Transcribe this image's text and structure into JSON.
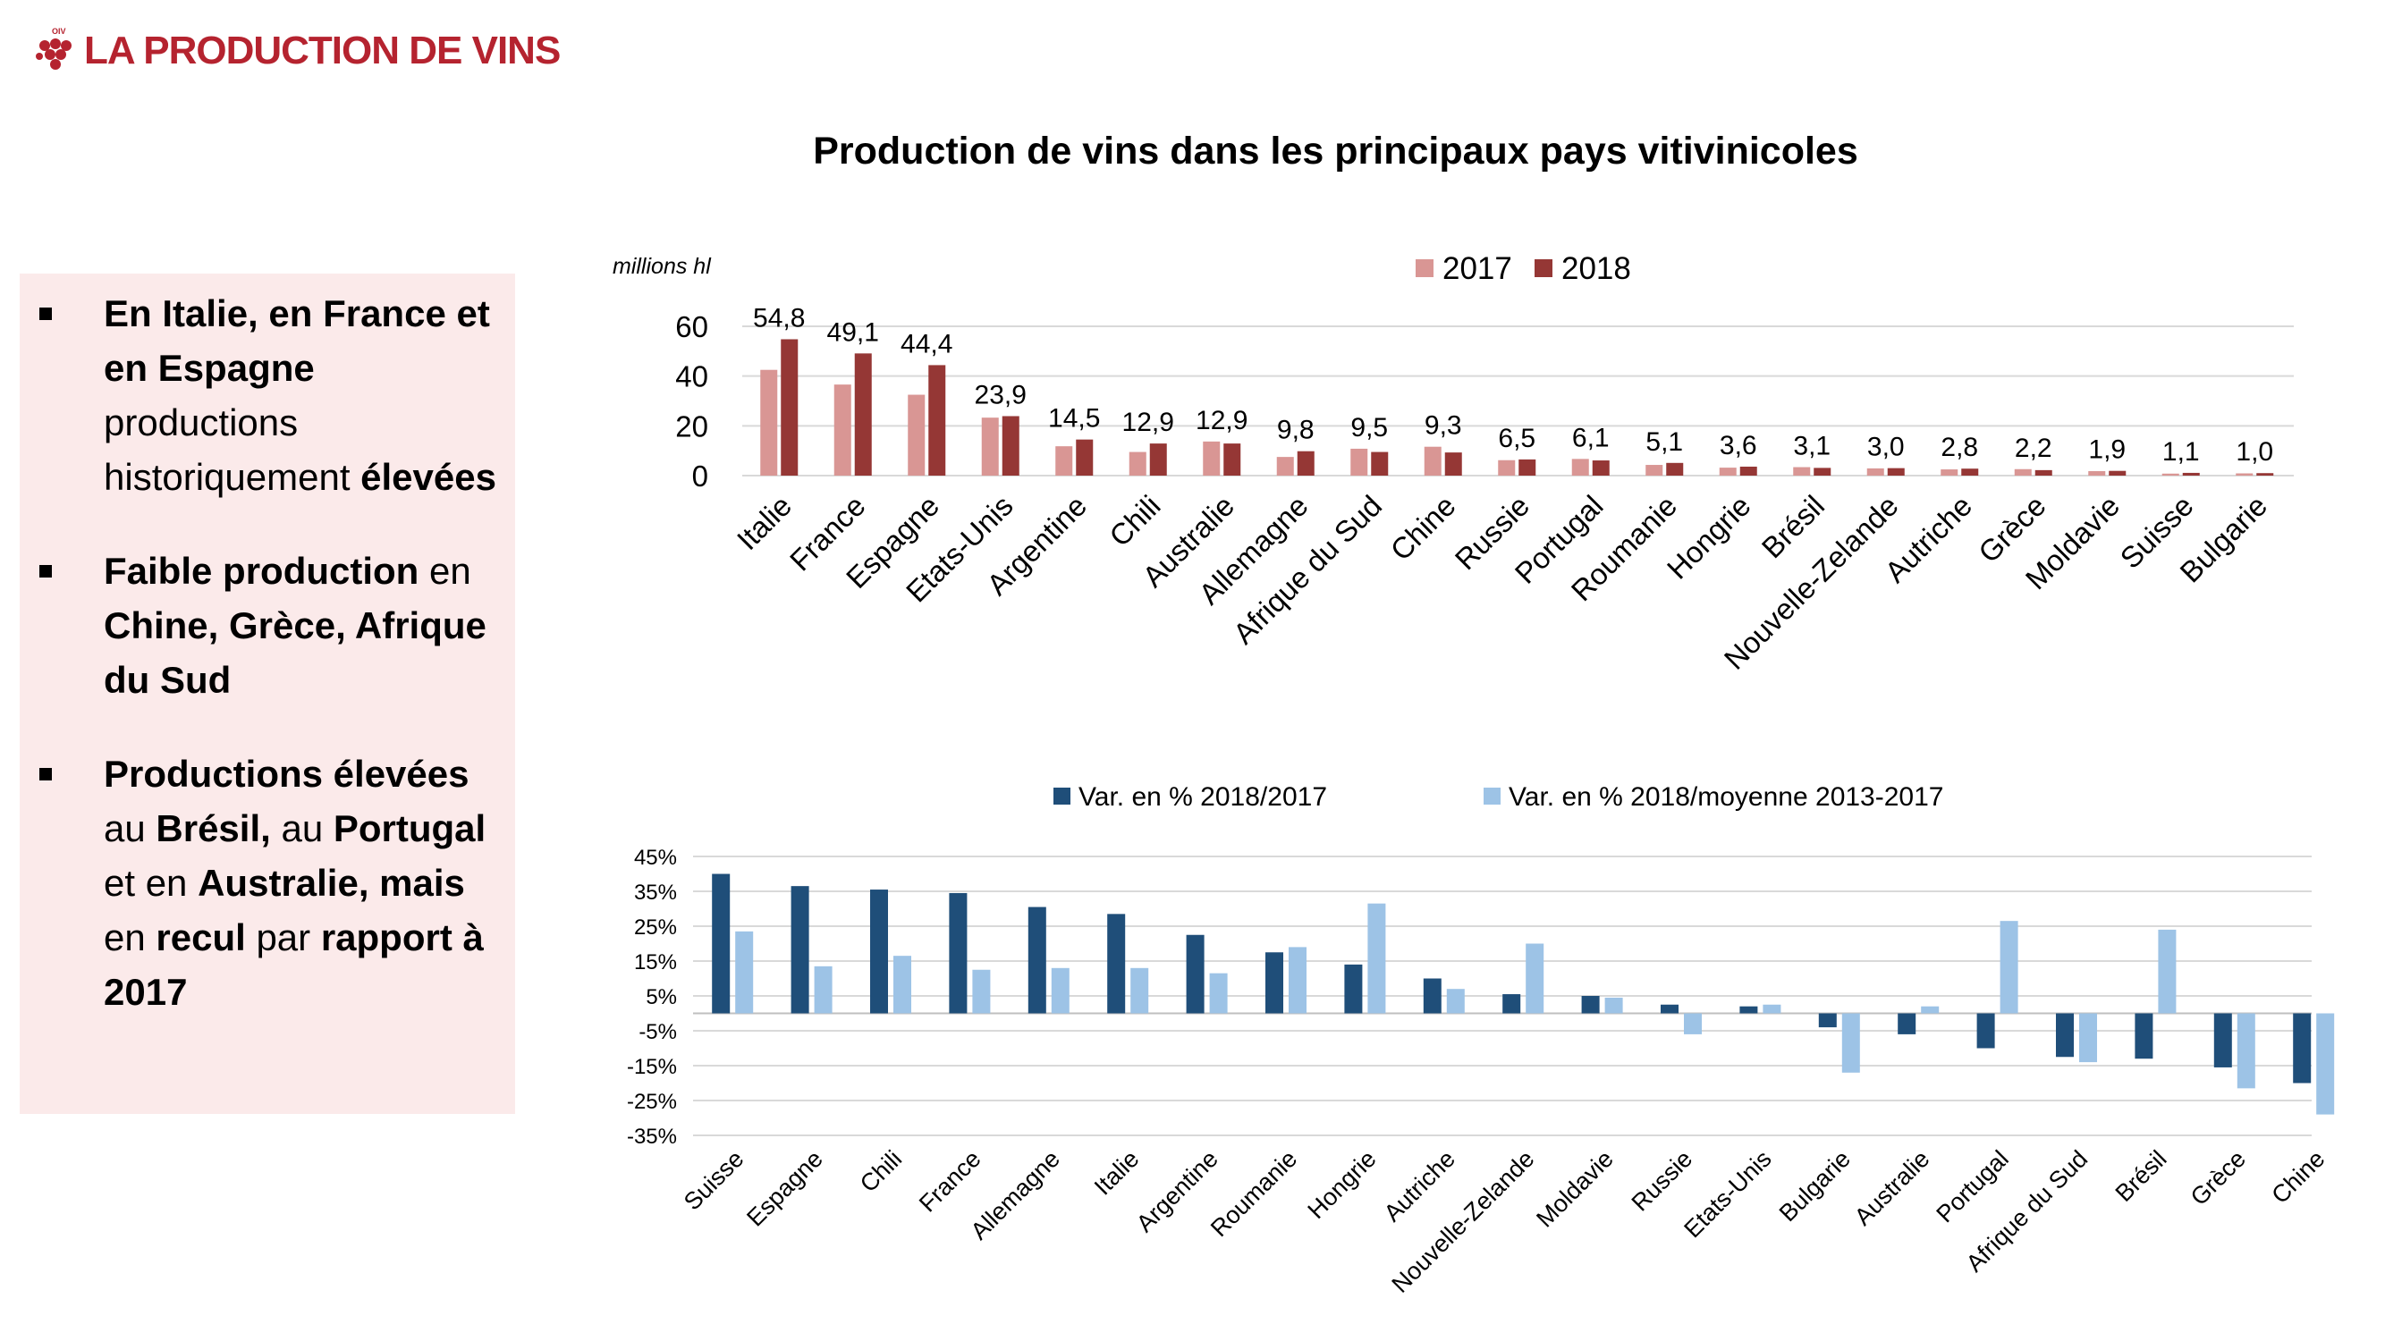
{
  "header": {
    "title": "LA PRODUCTION DE VINS",
    "logo_text": "OIV"
  },
  "main_title": "Production de vins dans les principaux pays vitivinicoles",
  "side_panel": {
    "bullets": [
      {
        "segments": [
          {
            "text": "En Italie, en France et en Espagne",
            "bold": true
          },
          {
            "text": " productions historiquement ",
            "bold": false
          },
          {
            "text": "élevées",
            "bold": true
          }
        ]
      },
      {
        "segments": [
          {
            "text": "Faible production",
            "bold": true
          },
          {
            "text": " en ",
            "bold": false
          },
          {
            "text": "Chine, Grèce, Afrique du Sud",
            "bold": true
          }
        ]
      },
      {
        "segments": [
          {
            "text": "Productions élevées",
            "bold": true
          },
          {
            "text": " au ",
            "bold": false
          },
          {
            "text": "Brésil,",
            "bold": true
          },
          {
            "text": " au ",
            "bold": false
          },
          {
            "text": "Portugal",
            "bold": true
          },
          {
            "text": " et en ",
            "bold": false
          },
          {
            "text": "Australie, mais",
            "bold": true
          },
          {
            "text": " en ",
            "bold": false
          },
          {
            "text": "recul",
            "bold": true
          },
          {
            "text": " par ",
            "bold": false
          },
          {
            "text": "rapport à 2017",
            "bold": true
          }
        ]
      }
    ]
  },
  "chart_data": [
    {
      "type": "bar",
      "title": "Production de vins dans les principaux pays vitivinicoles",
      "ylabel": "millions hl",
      "ylim": [
        0,
        60
      ],
      "yticks": [
        "0",
        "20",
        "40",
        "60"
      ],
      "grid": true,
      "legend": "top-center",
      "categories": [
        "Italie",
        "France",
        "Espagne",
        "Etats-Unis",
        "Argentine",
        "Chili",
        "Australie",
        "Allemagne",
        "Afrique du Sud",
        "Chine",
        "Russie",
        "Portugal",
        "Roumanie",
        "Hongrie",
        "Brésil",
        "Nouvelle-Zelande",
        "Autriche",
        "Grèce",
        "Moldavie",
        "Suisse",
        "Bulgarie"
      ],
      "series": [
        {
          "name": "2017",
          "color": "#d99694",
          "values": [
            42.5,
            36.6,
            32.5,
            23.3,
            11.8,
            9.5,
            13.7,
            7.5,
            10.8,
            11.6,
            6.2,
            6.7,
            4.3,
            3.2,
            3.4,
            2.9,
            2.5,
            2.6,
            1.8,
            0.8,
            0.9
          ]
        },
        {
          "name": "2018",
          "color": "#953735",
          "values": [
            54.8,
            49.1,
            44.4,
            23.9,
            14.5,
            12.9,
            12.9,
            9.8,
            9.5,
            9.3,
            6.5,
            6.1,
            5.1,
            3.6,
            3.1,
            3.0,
            2.8,
            2.2,
            1.9,
            1.1,
            1.0
          ]
        }
      ],
      "data_labels": [
        "54,8",
        "49,1",
        "44,4",
        "23,9",
        "14,5",
        "12,9",
        "12,9",
        "9,8",
        "9,5",
        "9,3",
        "6,5",
        "6,1",
        "5,1",
        "3,6",
        "3,1",
        "3,0",
        "2,8",
        "2,2",
        "1,9",
        "1,1",
        "1,0"
      ]
    },
    {
      "type": "bar",
      "ylim": [
        -35,
        45
      ],
      "yticks": [
        "45%",
        "35%",
        "25%",
        "15%",
        "5%",
        "-5%",
        "-15%",
        "-25%",
        "-35%"
      ],
      "grid": true,
      "legend": "top-center",
      "categories": [
        "Suisse",
        "Espagne",
        "Chili",
        "France",
        "Allemagne",
        "Italie",
        "Argentine",
        "Roumanie",
        "Hongrie",
        "Autriche",
        "Nouvelle-Zelande",
        "Moldavie",
        "Russie",
        "Etats-Unis",
        "Bulgarie",
        "Australie",
        "Portugal",
        "Afrique du Sud",
        "Brésil",
        "Grèce",
        "Chine"
      ],
      "series": [
        {
          "name": "Var. en % 2018/2017",
          "color": "#1f4e79",
          "values": [
            40,
            36.5,
            35.5,
            34.5,
            30.5,
            28.5,
            22.5,
            17.5,
            14,
            10,
            5.5,
            5,
            2.5,
            2,
            -4,
            -6,
            -10,
            -12.5,
            -13,
            -15.5,
            -20
          ]
        },
        {
          "name": "Var. en % 2018/moyenne 2013-2017",
          "color": "#9dc3e6",
          "values": [
            23.5,
            13.5,
            16.5,
            12.5,
            13,
            13,
            11.5,
            19,
            31.5,
            7,
            20,
            4.5,
            -6,
            2.5,
            -17,
            2,
            26.5,
            -14,
            24,
            -21.5,
            -29
          ]
        }
      ]
    }
  ]
}
